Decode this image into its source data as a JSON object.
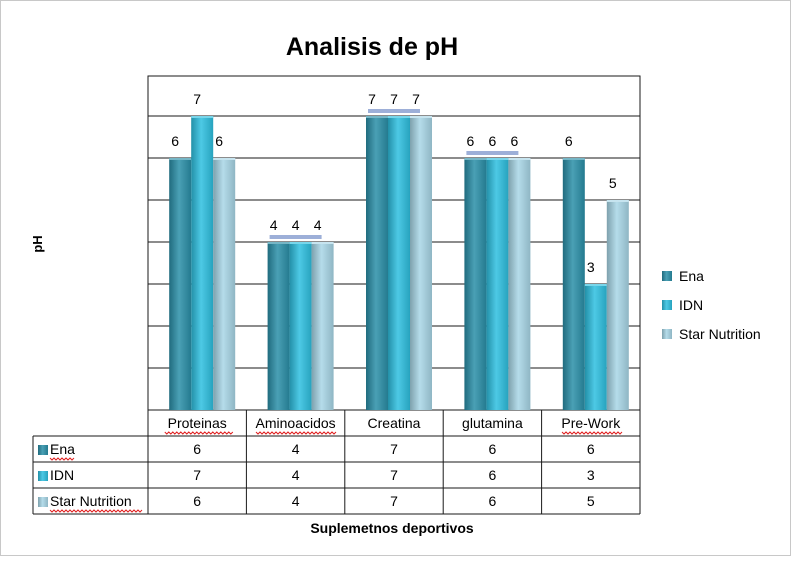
{
  "chart_data": {
    "type": "bar",
    "title": "Analisis de pH",
    "xlabel": "Suplemetnos deportivos",
    "ylabel": "pH",
    "ylim": [
      0,
      7
    ],
    "grid": true,
    "legend_position": "right",
    "categories": [
      "Proteinas",
      "Aminoacidos",
      "Creatina",
      "glutamina",
      "Pre-Work"
    ],
    "series": [
      {
        "name": "Ena",
        "values": [
          6,
          4,
          7,
          6,
          6
        ],
        "color": "#2a8fa8"
      },
      {
        "name": "IDN",
        "values": [
          7,
          4,
          7,
          6,
          3
        ],
        "color": "#2ec0e0"
      },
      {
        "name": "Star Nutrition",
        "values": [
          6,
          4,
          7,
          6,
          5
        ],
        "color": "#a8d6e6"
      }
    ],
    "data_table": true
  }
}
